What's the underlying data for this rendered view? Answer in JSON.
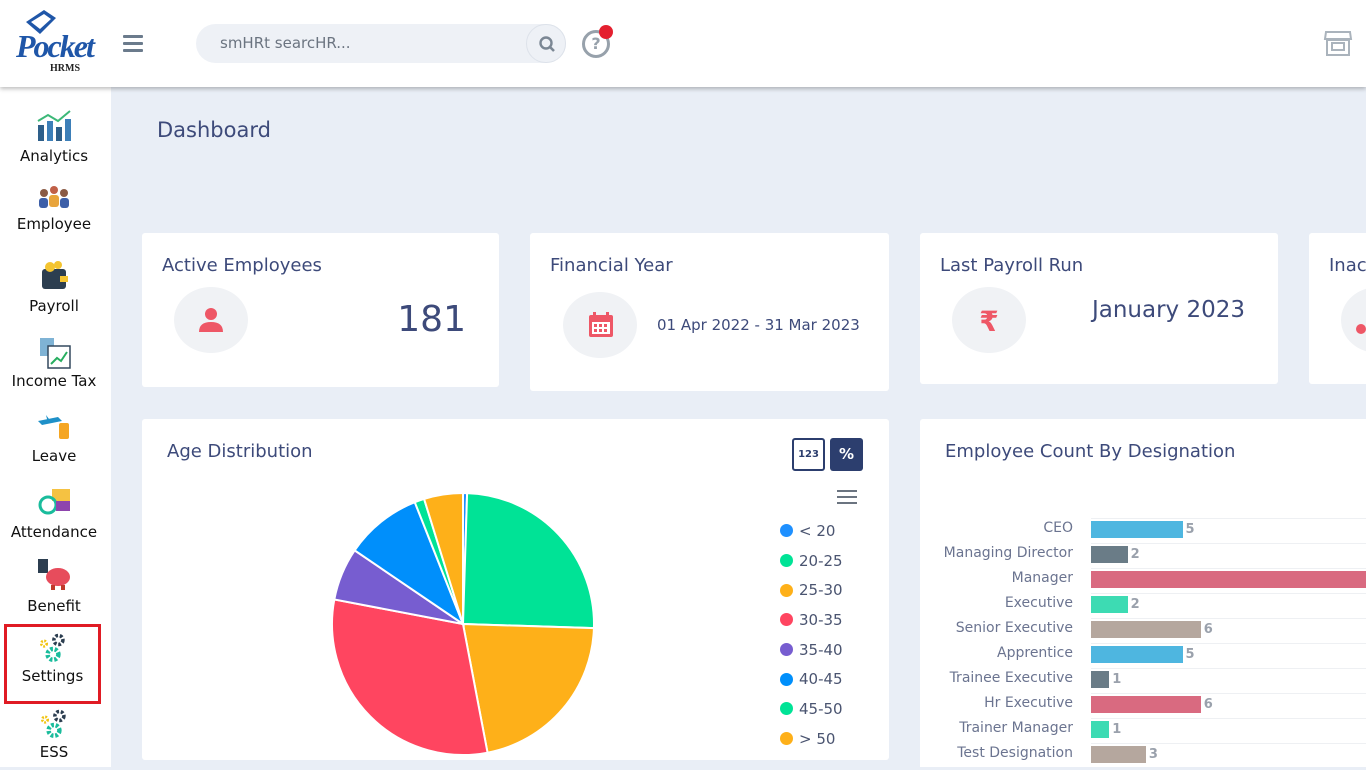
{
  "brand": {
    "logo_main": "Pocket",
    "logo_sub": "HRMS"
  },
  "search": {
    "placeholder": "smHRt searcHR..."
  },
  "sidebar": {
    "items": [
      {
        "label": "Analytics"
      },
      {
        "label": "Employee"
      },
      {
        "label": "Payroll"
      },
      {
        "label": "Income Tax"
      },
      {
        "label": "Leave"
      },
      {
        "label": "Attendance"
      },
      {
        "label": "Benefit"
      },
      {
        "label": "Settings"
      },
      {
        "label": "ESS"
      }
    ]
  },
  "page": {
    "title": "Dashboard"
  },
  "cards": {
    "active_employees": {
      "title": "Active Employees",
      "value": "181"
    },
    "financial_year": {
      "title": "Financial Year",
      "value": "01 Apr 2022 - 31 Mar 2023"
    },
    "last_payroll": {
      "title": "Last Payroll Run",
      "value": "January 2023"
    },
    "inactive": {
      "title": "Inac"
    }
  },
  "age_chart": {
    "title": "Age Distribution",
    "toggle_count": "123",
    "toggle_percent": "%"
  },
  "designation_chart": {
    "title": "Employee Count By Designation"
  },
  "colors": {
    "accent": "#3d4a7a",
    "alert": "#e4202f",
    "selected_border": "#e01b24"
  },
  "chart_data": [
    {
      "type": "pie",
      "title": "Age Distribution",
      "categories": [
        "< 20",
        "20-25",
        "25-30",
        "30-35",
        "35-40",
        "40-45",
        "45-50",
        "> 50"
      ],
      "values": [
        0.5,
        25,
        21.5,
        31,
        6.5,
        9.5,
        1.2,
        4.8
      ],
      "colors": [
        "#1e90ff",
        "#00e396",
        "#feb019",
        "#ff4560",
        "#775dd0",
        "#008ffb",
        "#00e396",
        "#feb019"
      ],
      "legend": "right"
    },
    {
      "type": "bar",
      "orientation": "horizontal",
      "title": "Employee Count By Designation",
      "categories": [
        "CEO",
        "Managing Director",
        "Manager",
        "Executive",
        "Senior Executive",
        "Apprentice",
        "Trainee Executive",
        "Hr Executive",
        "Trainer Manager",
        "Test Designation"
      ],
      "values": [
        5,
        2,
        null,
        2,
        6,
        5,
        1,
        6,
        1,
        3
      ],
      "value_labels": [
        "5",
        "2",
        "",
        "2",
        "6",
        "5",
        "1",
        "6",
        "1",
        "3"
      ],
      "colors": [
        "#4eb6e0",
        "#6a7c87",
        "#d96a80",
        "#3ddbb3",
        "#b5a79e",
        "#4eb6e0",
        "#6a7c87",
        "#d96a80",
        "#3ddbb3",
        "#b5a79e"
      ]
    }
  ]
}
